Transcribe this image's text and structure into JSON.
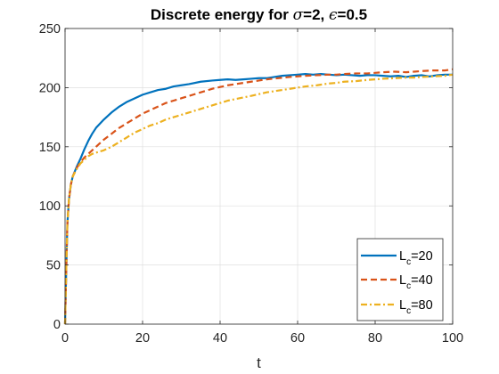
{
  "chart_data": {
    "type": "line",
    "title": {
      "prefix": "Discrete energy for ",
      "sigma_symbol": "σ",
      "sigma_value": "=2, ",
      "epsilon_symbol": "ϵ",
      "epsilon_value": "=0.5"
    },
    "xlabel": "t",
    "ylabel": "",
    "xlim": [
      0,
      100
    ],
    "ylim": [
      0,
      250
    ],
    "xticks": [
      0,
      20,
      40,
      60,
      80,
      100
    ],
    "yticks": [
      0,
      50,
      100,
      150,
      200,
      250
    ],
    "grid": true,
    "legend_position": "bottom-right",
    "series": [
      {
        "name_main": "L",
        "name_sub": "c",
        "name_suffix": "=20",
        "color": "#0072BD",
        "dash": "solid",
        "x": [
          0,
          0.3,
          0.6,
          1,
          1.5,
          2,
          3,
          4,
          5,
          6,
          7,
          8,
          10,
          12,
          14,
          16,
          18,
          20,
          22,
          24,
          26,
          28,
          30,
          32,
          35,
          38,
          40,
          42,
          44,
          46,
          48,
          50,
          52,
          54,
          56,
          58,
          60,
          62,
          64,
          66,
          68,
          70,
          72,
          74,
          76,
          78,
          80,
          82,
          84,
          86,
          88,
          90,
          92,
          94,
          96,
          98,
          100
        ],
        "y": [
          0,
          45,
          85,
          105,
          118,
          125,
          133,
          140,
          148,
          155,
          161,
          166,
          173,
          179,
          184,
          188,
          191,
          194,
          196,
          198,
          199,
          201,
          202,
          203,
          205,
          206,
          206.5,
          207,
          206.5,
          207,
          207.5,
          208,
          208,
          209,
          210,
          210.5,
          211,
          211.5,
          211,
          211.5,
          211,
          210.5,
          211,
          210.5,
          210,
          210.5,
          210.5,
          210,
          209.5,
          210,
          209,
          210,
          210.5,
          209.5,
          210.5,
          211,
          211
        ]
      },
      {
        "name_main": "L",
        "name_sub": "c",
        "name_suffix": "=40",
        "color": "#D95319",
        "dash": "dashed",
        "x": [
          0,
          0.3,
          0.6,
          1,
          1.5,
          2,
          3,
          4,
          5,
          6,
          7,
          8,
          10,
          12,
          14,
          16,
          18,
          20,
          22,
          24,
          26,
          28,
          30,
          32,
          35,
          38,
          40,
          42,
          44,
          46,
          48,
          50,
          52,
          55,
          58,
          60,
          62,
          65,
          68,
          70,
          72,
          75,
          78,
          80,
          82,
          85,
          88,
          90,
          92,
          95,
          98,
          100
        ],
        "y": [
          0,
          45,
          85,
          105,
          118,
          125,
          132,
          137,
          141,
          144,
          147,
          150,
          156,
          161,
          166,
          170,
          174,
          178,
          181,
          184,
          187,
          189,
          191,
          193,
          196,
          199,
          200.5,
          202,
          203,
          204,
          205,
          206,
          207,
          208,
          209,
          209.5,
          210,
          210.5,
          211,
          211,
          211.5,
          212,
          212,
          212.5,
          213,
          213.5,
          213,
          213.5,
          214,
          214.5,
          214.5,
          215.5
        ]
      },
      {
        "name_main": "L",
        "name_sub": "c",
        "name_suffix": "=80",
        "color": "#EDB120",
        "dash": "dashdot",
        "x": [
          0,
          0.3,
          0.6,
          1,
          1.5,
          2,
          3,
          4,
          5,
          6,
          7,
          8,
          10,
          12,
          14,
          16,
          18,
          20,
          22,
          24,
          26,
          28,
          30,
          32,
          35,
          38,
          40,
          42,
          45,
          48,
          50,
          52,
          55,
          58,
          60,
          62,
          65,
          68,
          70,
          72,
          75,
          78,
          80,
          82,
          85,
          88,
          90,
          92,
          95,
          98,
          100
        ],
        "y": [
          0,
          45,
          85,
          105,
          118,
          125,
          131,
          136,
          139,
          142,
          144,
          145,
          147,
          150,
          154,
          158,
          162,
          165,
          168,
          170,
          173,
          175,
          177,
          179,
          182,
          185,
          187,
          189,
          191,
          193,
          194.5,
          196,
          197.5,
          199,
          200,
          201,
          202,
          203.5,
          204,
          205,
          205.5,
          206.5,
          207,
          207.5,
          208,
          208.5,
          208.5,
          209,
          209.5,
          210,
          211
        ]
      }
    ]
  }
}
